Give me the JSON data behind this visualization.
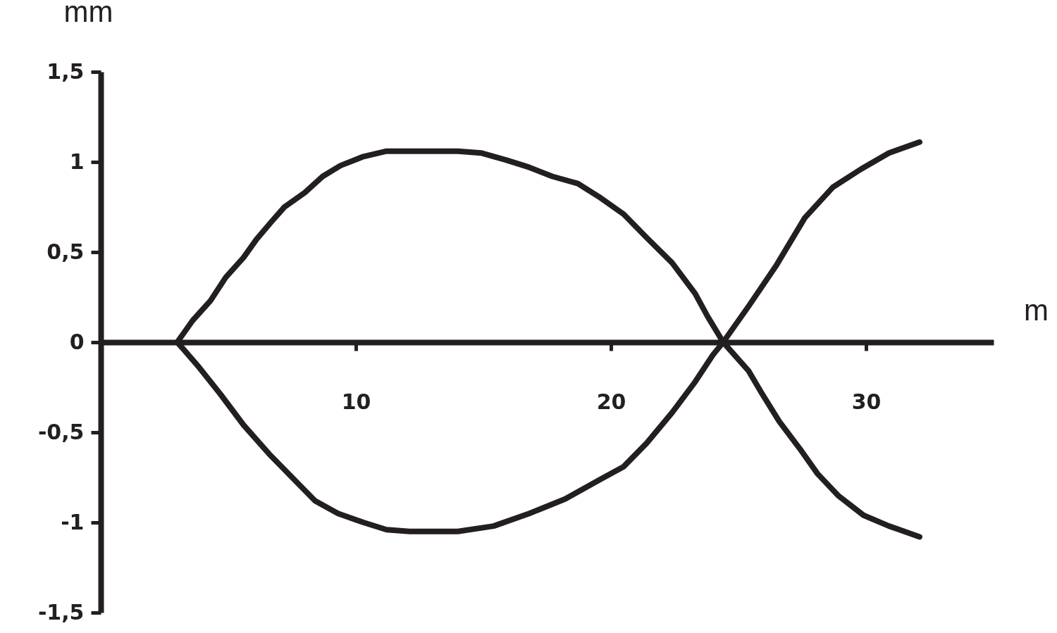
{
  "chart_data": {
    "type": "line",
    "xlabel": "m",
    "ylabel": "mm",
    "xlim": [
      0,
      35
    ],
    "ylim": [
      -1.5,
      1.5
    ],
    "xticks": [
      10,
      20,
      30
    ],
    "yticks": [
      {
        "value": 1.5,
        "label": "1,5"
      },
      1,
      {
        "value": 0.5,
        "label": "0,5"
      },
      0,
      {
        "value": -0.5,
        "label": "-0,5"
      },
      -1,
      {
        "value": -1.5,
        "label": "-1,5"
      }
    ],
    "line_style": "solid",
    "series": [
      {
        "color": "#231f20",
        "x": [
          3.0,
          3.6,
          4.3,
          4.9,
          5.6,
          6.1,
          6.7,
          7.2,
          8.0,
          8.7,
          9.4,
          10.3,
          11.2,
          12.1,
          14.0,
          14.9,
          15.9,
          16.8,
          17.7,
          18.7,
          19.6,
          20.5,
          21.4,
          22.4,
          23.3,
          23.8,
          24.4,
          25.4,
          25.9,
          26.6,
          27.4,
          28.1,
          28.9,
          29.9,
          30.9,
          32.1
        ],
        "values": [
          0,
          0.12,
          0.23,
          0.36,
          0.47,
          0.57,
          0.67,
          0.75,
          0.83,
          0.92,
          0.98,
          1.03,
          1.06,
          1.06,
          1.06,
          1.05,
          1.01,
          0.97,
          0.92,
          0.88,
          0.8,
          0.71,
          0.58,
          0.44,
          0.27,
          0.14,
          0,
          -0.16,
          -0.28,
          -0.44,
          -0.59,
          -0.73,
          -0.85,
          -0.96,
          -1.02,
          -1.08
        ]
      },
      {
        "color": "#231f20",
        "x": [
          3.0,
          3.8,
          4.7,
          5.6,
          6.6,
          7.5,
          8.4,
          9.3,
          10.3,
          11.2,
          12.1,
          14.0,
          15.4,
          16.8,
          18.2,
          19.6,
          20.5,
          21.4,
          22.4,
          23.3,
          24.0,
          24.4,
          25.4,
          26.5,
          27.6,
          28.7,
          29.8,
          30.9,
          32.1
        ],
        "values": [
          0,
          -0.13,
          -0.29,
          -0.46,
          -0.62,
          -0.75,
          -0.88,
          -0.95,
          -1.0,
          -1.04,
          -1.05,
          -1.05,
          -1.02,
          -0.95,
          -0.87,
          -0.76,
          -0.69,
          -0.56,
          -0.39,
          -0.22,
          -0.07,
          0,
          0.2,
          0.43,
          0.69,
          0.86,
          0.96,
          1.05,
          1.11
        ]
      }
    ]
  }
}
